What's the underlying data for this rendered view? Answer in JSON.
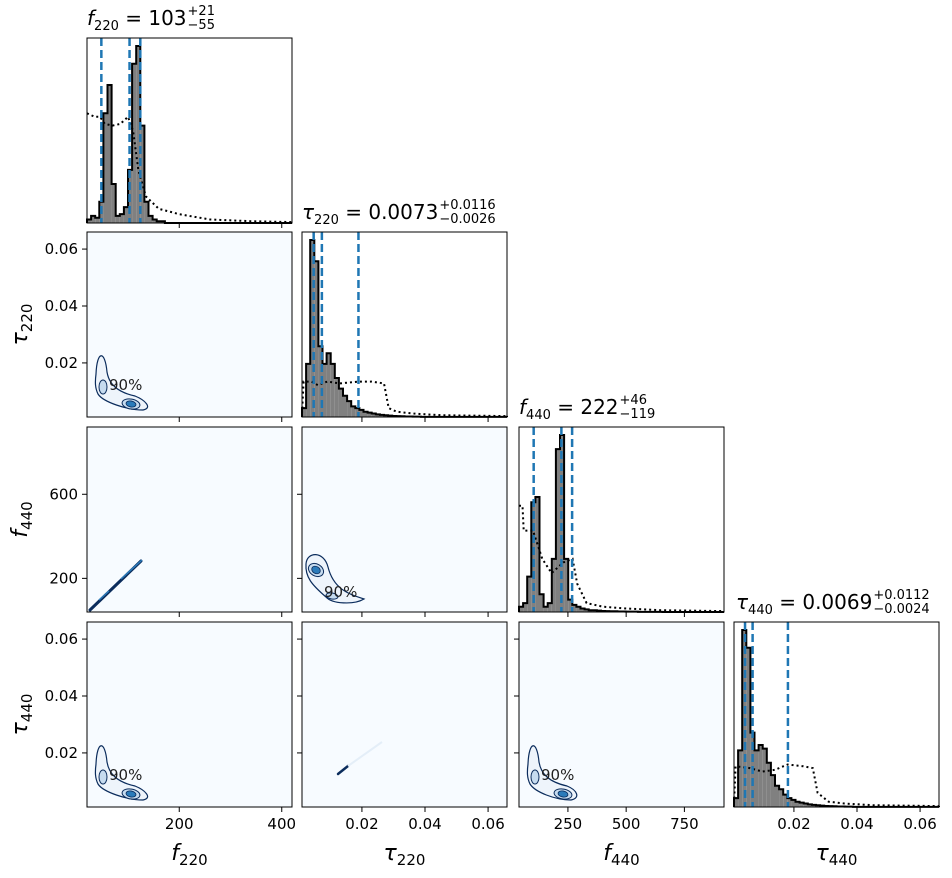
{
  "chart_data": {
    "type": "corner",
    "parameters": [
      "f220",
      "tau220",
      "f440",
      "tau440"
    ],
    "axis_labels": {
      "f220": {
        "sym": "f",
        "sub": "220"
      },
      "tau220": {
        "sym": "τ",
        "sub": "220"
      },
      "f440": {
        "sym": "f",
        "sub": "440"
      },
      "tau440": {
        "sym": "τ",
        "sub": "440"
      }
    },
    "ranges": {
      "f220": [
        20,
        420
      ],
      "tau220": [
        0.001,
        0.066
      ],
      "f440": [
        40,
        920
      ],
      "tau440": [
        0.001,
        0.066
      ]
    },
    "ticks": {
      "f220": [
        200,
        400
      ],
      "tau220": [
        0.02,
        0.04,
        0.06
      ],
      "f440": [
        250,
        500,
        750
      ],
      "tau440": [
        0.02,
        0.04,
        0.06
      ],
      "f440_y": [
        200,
        600
      ],
      "tau220_y": [
        0.02,
        0.04,
        0.06
      ],
      "tau440_y": [
        0.02,
        0.04,
        0.06
      ]
    },
    "tick_labels": {
      "f220": [
        "200",
        "400"
      ],
      "tau220": [
        "0.02",
        "0.04",
        "0.06"
      ],
      "f440": [
        "250",
        "500",
        "750"
      ],
      "tau440": [
        "0.02",
        "0.04",
        "0.06"
      ],
      "f440_y": [
        "200",
        "600"
      ],
      "tau220_y": [
        "0.02",
        "0.04",
        "0.06"
      ],
      "tau440_y": [
        "0.02",
        "0.04",
        "0.06"
      ]
    },
    "titles": [
      {
        "sym": "f",
        "sub": "220",
        "eq": " = 103",
        "sup": "+21",
        "low": "−55"
      },
      {
        "sym": "τ",
        "sub": "220",
        "eq": " = 0.0073",
        "sup": "+0.0116",
        "low": "−0.0026"
      },
      {
        "sym": "f",
        "sub": "440",
        "eq": " = 222",
        "sup": "+46",
        "low": "−119"
      },
      {
        "sym": "τ",
        "sub": "440",
        "eq": " = 0.0069",
        "sup": "+0.0112",
        "low": "−0.0024"
      }
    ],
    "quantile_lines": {
      "f220": [
        48,
        103,
        124
      ],
      "tau220": [
        0.0047,
        0.0073,
        0.0189
      ],
      "f440": [
        103,
        222,
        268
      ],
      "tau440": [
        0.0045,
        0.0069,
        0.0181
      ]
    },
    "histograms": {
      "f220": {
        "bin_start": 20,
        "bin_width": 8,
        "counts": [
          0.02,
          0.04,
          0.03,
          0.12,
          0.62,
          0.78,
          0.22,
          0.04,
          0.05,
          0.09,
          0.3,
          0.9,
          1.0,
          0.55,
          0.12,
          0.04,
          0.02,
          0.01,
          0.01,
          0,
          0,
          0,
          0,
          0,
          0,
          0,
          0,
          0,
          0,
          0,
          0,
          0,
          0,
          0,
          0,
          0,
          0,
          0,
          0,
          0,
          0,
          0,
          0,
          0,
          0,
          0,
          0,
          0,
          0,
          0
        ]
      },
      "tau220": {
        "bin_start": 0.001,
        "bin_width": 0.0013,
        "counts": [
          0.05,
          0.3,
          1.0,
          0.88,
          0.4,
          0.3,
          0.36,
          0.3,
          0.22,
          0.16,
          0.12,
          0.09,
          0.06,
          0.05,
          0.04,
          0.03,
          0.025,
          0.02,
          0.015,
          0.012,
          0.01,
          0.008,
          0.006,
          0.005,
          0.004,
          0.003,
          0.003,
          0.002,
          0.002,
          0.001,
          0.001,
          0.001,
          0.001,
          0.001,
          0.001,
          0.0005,
          0.0005,
          0.0005,
          0.0005,
          0.0005,
          0.0005,
          0.0005,
          0.0005,
          0.0005,
          0.0005,
          0.0005,
          0.0005,
          0.0005,
          0.0005,
          0.0005
        ]
      },
      "f440": {
        "bin_start": 40,
        "bin_width": 17.6,
        "counts": [
          0.03,
          0.05,
          0.2,
          0.62,
          0.65,
          0.1,
          0.03,
          0.05,
          0.3,
          0.92,
          1.0,
          0.3,
          0.07,
          0.04,
          0.03,
          0.02,
          0.015,
          0.01,
          0.01,
          0.008,
          0.006,
          0.005,
          0.004,
          0.004,
          0.003,
          0.003,
          0.002,
          0.002,
          0.002,
          0.001,
          0.001,
          0.001,
          0.001,
          0.001,
          0.001,
          0,
          0,
          0,
          0,
          0,
          0,
          0,
          0,
          0,
          0,
          0,
          0,
          0,
          0,
          0
        ]
      },
      "tau440": {
        "bin_start": 0.001,
        "bin_width": 0.0013,
        "counts": [
          0.05,
          0.32,
          1.0,
          0.9,
          0.42,
          0.32,
          0.35,
          0.33,
          0.25,
          0.18,
          0.12,
          0.1,
          0.07,
          0.05,
          0.04,
          0.03,
          0.025,
          0.02,
          0.015,
          0.012,
          0.01,
          0.008,
          0.006,
          0.005,
          0.004,
          0.003,
          0.003,
          0.002,
          0.002,
          0.001,
          0.001,
          0.001,
          0.001,
          0.001,
          0.001,
          0.0005,
          0.0005,
          0.0005,
          0.0005,
          0.0005,
          0.0005,
          0.0005,
          0.0005,
          0.0005,
          0.0005,
          0.0005,
          0.0005,
          0.0005,
          0.0005,
          0.0005
        ]
      }
    },
    "prior_curves": {
      "f220": [
        [
          20,
          0.62
        ],
        [
          35,
          0.6
        ],
        [
          45,
          0.6
        ],
        [
          55,
          0.56
        ],
        [
          70,
          0.55
        ],
        [
          85,
          0.56
        ],
        [
          100,
          0.6
        ],
        [
          110,
          0.52
        ],
        [
          120,
          0.3
        ],
        [
          135,
          0.15
        ],
        [
          160,
          0.08
        ],
        [
          200,
          0.05
        ],
        [
          260,
          0.02
        ],
        [
          340,
          0.01
        ],
        [
          420,
          0.005
        ]
      ],
      "tau220": [
        [
          0.001,
          0.02
        ],
        [
          0.0015,
          0.2
        ],
        [
          0.004,
          0.2
        ],
        [
          0.006,
          0.18
        ],
        [
          0.009,
          0.2
        ],
        [
          0.013,
          0.19
        ],
        [
          0.019,
          0.2
        ],
        [
          0.023,
          0.2
        ],
        [
          0.027,
          0.19
        ],
        [
          0.0285,
          0.05
        ],
        [
          0.031,
          0.03
        ],
        [
          0.036,
          0.02
        ],
        [
          0.045,
          0.01
        ],
        [
          0.066,
          0.005
        ]
      ],
      "f440": [
        [
          40,
          0.6
        ],
        [
          55,
          0.6
        ],
        [
          60,
          0.46
        ],
        [
          100,
          0.46
        ],
        [
          140,
          0.3
        ],
        [
          180,
          0.22
        ],
        [
          230,
          0.28
        ],
        [
          270,
          0.3
        ],
        [
          290,
          0.16
        ],
        [
          330,
          0.05
        ],
        [
          400,
          0.03
        ],
        [
          500,
          0.02
        ],
        [
          650,
          0.01
        ],
        [
          920,
          0.005
        ]
      ],
      "tau440": [
        [
          0.001,
          0.02
        ],
        [
          0.0015,
          0.23
        ],
        [
          0.006,
          0.22
        ],
        [
          0.01,
          0.2
        ],
        [
          0.014,
          0.21
        ],
        [
          0.018,
          0.24
        ],
        [
          0.023,
          0.23
        ],
        [
          0.026,
          0.22
        ],
        [
          0.0275,
          0.08
        ],
        [
          0.031,
          0.03
        ],
        [
          0.036,
          0.02
        ],
        [
          0.045,
          0.01
        ],
        [
          0.066,
          0.005
        ]
      ]
    },
    "contour_label": "90%",
    "colors": {
      "hist_fill": "#808080",
      "quantile_line": "#1f77b4",
      "panel_bg": "#f7fbff",
      "contour_outer": "#0b2c5c",
      "contour_fill_inner": "#2b7bba",
      "contour_fill_mid": "#c6dbef"
    },
    "grid": false,
    "legend": "none"
  }
}
